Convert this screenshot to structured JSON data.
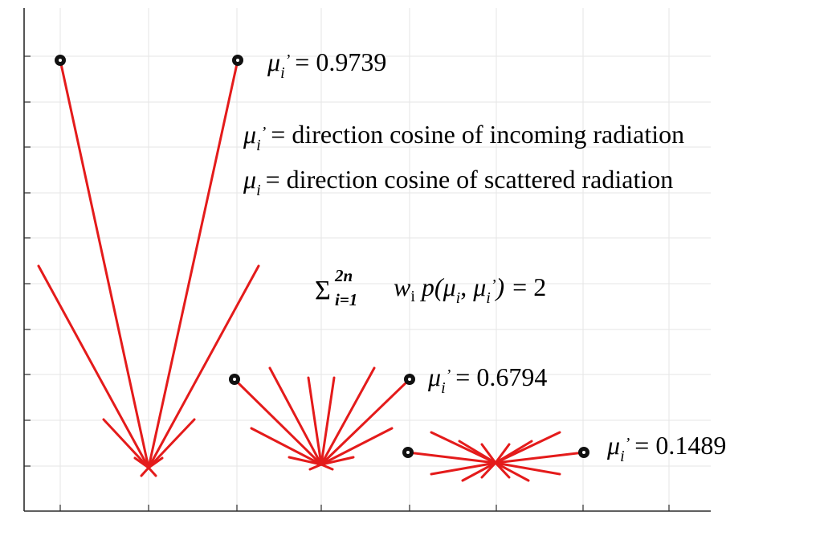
{
  "labels": {
    "mu_prime_symbol": "μ",
    "sub_i_prime": "i",
    "prime": "’",
    "sub_i": "i",
    "eq": "=",
    "value_1": "0.9739",
    "value_2": "0.6794",
    "value_3": "0.1489"
  },
  "definitions": {
    "incoming": "direction cosine of incoming radiation",
    "scattered": "direction cosine of scattered radiation"
  },
  "normalization": {
    "sum": "Σ",
    "upper": "2n",
    "lower": "i=1",
    "w": "w",
    "w_sub": "i",
    "p": "p(",
    "mu": "μ",
    "comma": ",",
    "close": ")",
    "rhs": "= 2"
  },
  "colors": {
    "ray": "#e41b1b",
    "axis": "#2a2a2a",
    "grid": "#e6e6e6"
  }
}
